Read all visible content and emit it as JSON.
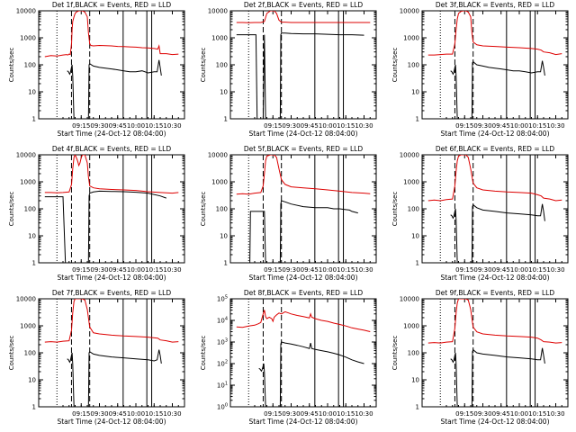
{
  "colors": {
    "events": "#000000",
    "lld": "#dd0000",
    "axes": "#000000",
    "background": "#ffffff"
  },
  "xlabel": "Start Time (24-Oct-12 08:04:00)",
  "ylabel": "Counts/sec",
  "x_ticks": [
    "09:15",
    "09:30",
    "09:45",
    "10:00",
    "10:15",
    "10:30"
  ],
  "y_ticks_decimal": [
    "1",
    "10",
    "100",
    "1000",
    "10000"
  ],
  "y_ticks_power": [
    "10^0",
    "10^1",
    "10^2",
    "10^3",
    "10^4",
    "10^5"
  ],
  "chart_data": [
    {
      "type": "line",
      "title": "Det 1f,BLACK = Events, RED = LLD",
      "ylim": [
        1,
        10000
      ],
      "yscale": "log",
      "x_unit": "minutes after 09:00",
      "series": [
        {
          "name": "Events",
          "x": [
            3.5,
            4.5,
            5.5,
            6,
            7.5,
            8,
            9,
            9.5,
            10,
            10.5,
            16,
            18,
            19,
            20,
            21,
            21.5,
            22,
            25,
            30,
            35,
            40,
            45,
            50,
            55,
            60,
            65,
            70,
            75,
            77.5,
            79,
            80,
            81
          ],
          "values": [
            60,
            55,
            45,
            50,
            100,
            40,
            1,
            1,
            1,
            1,
            1,
            1,
            1,
            1,
            1,
            100,
            110,
            90,
            80,
            75,
            70,
            65,
            60,
            55,
            55,
            60,
            50,
            55,
            55,
            150,
            80,
            40
          ]
        },
        {
          "name": "LLD",
          "x": [
            -15,
            -10,
            -5,
            0,
            3,
            4,
            5,
            6,
            7,
            7.5,
            8,
            9,
            10,
            11,
            12,
            13,
            14,
            15,
            16,
            18,
            20,
            21,
            22,
            23,
            25,
            30,
            35,
            40,
            45,
            50,
            55,
            60,
            65,
            70,
            75,
            78,
            79,
            80,
            85,
            90,
            95
          ],
          "values": [
            200,
            220,
            210,
            230,
            240,
            230,
            250,
            240,
            600,
            2000,
            4000,
            6000,
            8000,
            9000,
            9500,
            10000,
            10000,
            10000,
            10000,
            9000,
            6000,
            1500,
            600,
            520,
            500,
            520,
            510,
            500,
            480,
            470,
            460,
            450,
            430,
            420,
            400,
            380,
            500,
            260,
            260,
            240,
            250
          ]
        }
      ]
    },
    {
      "type": "line",
      "title": "Det 2f,BLACK = Events, RED = LLD",
      "ylim": [
        1,
        10000
      ],
      "yscale": "log",
      "x_unit": "minutes after 09:00",
      "series": [
        {
          "name": "Events",
          "x": [
            -15,
            -10,
            -5,
            0,
            1,
            2,
            7,
            8,
            9,
            15,
            20,
            21,
            21.5,
            22,
            25,
            30,
            40,
            50,
            60,
            70,
            80,
            90
          ],
          "values": [
            1300,
            1300,
            1300,
            1300,
            1300,
            1,
            1,
            1300,
            1,
            1,
            1,
            1,
            1300,
            1500,
            1500,
            1450,
            1400,
            1400,
            1350,
            1300,
            1300,
            1250
          ]
        },
        {
          "name": "LLD",
          "x": [
            -15,
            -10,
            -5,
            0,
            5,
            8,
            10,
            13,
            16,
            18,
            20,
            22,
            25,
            30,
            40,
            50,
            60,
            70,
            80,
            90,
            95
          ],
          "values": [
            3700,
            3700,
            3600,
            3700,
            3700,
            4000,
            8000,
            10000,
            10000,
            8000,
            4500,
            3800,
            3800,
            3700,
            3700,
            3700,
            3700,
            3700,
            3700,
            3700,
            3700
          ]
        }
      ]
    },
    {
      "type": "line",
      "title": "Det 3f,BLACK = Events, RED = LLD",
      "ylim": [
        1,
        10000
      ],
      "yscale": "log",
      "x_unit": "minutes after 09:00",
      "series": [
        {
          "name": "Events",
          "x": [
            3.5,
            4.5,
            5.5,
            6,
            7.5,
            8,
            9,
            20,
            21,
            21.5,
            22,
            25,
            30,
            35,
            40,
            45,
            50,
            55,
            60,
            65,
            70,
            75,
            77.5,
            79,
            80,
            81
          ],
          "values": [
            60,
            55,
            45,
            50,
            100,
            40,
            1,
            1,
            1,
            120,
            130,
            100,
            90,
            80,
            75,
            70,
            65,
            60,
            60,
            55,
            50,
            55,
            55,
            140,
            80,
            40
          ]
        },
        {
          "name": "LLD",
          "x": [
            -15,
            -10,
            -5,
            0,
            5,
            7,
            8,
            9,
            10,
            12,
            14,
            16,
            18,
            20,
            21,
            22,
            25,
            30,
            40,
            50,
            60,
            70,
            75,
            78,
            80,
            85,
            90,
            95
          ],
          "values": [
            230,
            230,
            240,
            250,
            250,
            600,
            2000,
            5000,
            8000,
            9500,
            10000,
            10000,
            9000,
            6000,
            1500,
            700,
            550,
            500,
            480,
            450,
            430,
            400,
            380,
            350,
            300,
            280,
            240,
            260
          ]
        }
      ]
    },
    {
      "type": "line",
      "title": "Det 4f,BLACK = Events, RED = LLD",
      "ylim": [
        1,
        10000
      ],
      "yscale": "log",
      "x_unit": "minutes after 09:00",
      "series": [
        {
          "name": "Events",
          "x": [
            -15,
            -5,
            0,
            2,
            7,
            8,
            9,
            20,
            21,
            21.5,
            22,
            25,
            30,
            40,
            50,
            60,
            70,
            80,
            85
          ],
          "values": [
            280,
            280,
            280,
            1,
            1,
            1,
            1,
            1,
            1,
            300,
            380,
            420,
            450,
            440,
            430,
            410,
            380,
            300,
            250
          ]
        },
        {
          "name": "LLD",
          "x": [
            -15,
            -10,
            -5,
            0,
            5,
            7,
            8,
            9,
            10,
            12,
            13,
            14,
            15,
            16,
            18,
            20,
            21,
            22,
            25,
            30,
            40,
            50,
            60,
            70,
            80,
            90,
            95
          ],
          "values": [
            400,
            400,
            390,
            400,
            420,
            800,
            3000,
            8000,
            10000,
            6000,
            4000,
            5000,
            8000,
            10000,
            10000,
            5000,
            1500,
            700,
            600,
            550,
            520,
            500,
            480,
            430,
            400,
            380,
            400
          ]
        }
      ]
    },
    {
      "type": "line",
      "title": "Det 5f,BLACK = Events, RED = LLD",
      "ylim": [
        1,
        10000
      ],
      "yscale": "log",
      "x_unit": "minutes after 09:00",
      "series": [
        {
          "name": "Events",
          "x": [
            -4,
            -3.5,
            7,
            8,
            9,
            20,
            21,
            21.5,
            22,
            25,
            30,
            40,
            50,
            60,
            65,
            70,
            78,
            80,
            85
          ],
          "values": [
            1,
            80,
            80,
            80,
            1,
            1,
            1,
            150,
            200,
            180,
            150,
            120,
            110,
            110,
            100,
            100,
            90,
            80,
            70
          ]
        },
        {
          "name": "LLD",
          "x": [
            -15,
            -10,
            -5,
            0,
            5,
            7,
            8,
            9,
            10,
            13,
            16,
            18,
            20,
            22,
            25,
            30,
            40,
            50,
            60,
            70,
            80,
            90,
            95
          ],
          "values": [
            350,
            360,
            350,
            380,
            400,
            700,
            2000,
            6000,
            9000,
            10000,
            10000,
            8000,
            3000,
            1200,
            800,
            650,
            600,
            550,
            500,
            450,
            400,
            380,
            360
          ]
        }
      ]
    },
    {
      "type": "line",
      "title": "Det 6f,BLACK = Events, RED = LLD",
      "ylim": [
        1,
        10000
      ],
      "yscale": "log",
      "x_unit": "minutes after 09:00",
      "series": [
        {
          "name": "Events",
          "x": [
            3.5,
            4.5,
            5.5,
            6,
            7.5,
            8,
            9,
            20,
            21,
            21.5,
            22,
            25,
            30,
            40,
            50,
            60,
            70,
            75,
            77.5,
            79,
            80,
            81
          ],
          "values": [
            60,
            55,
            45,
            50,
            100,
            40,
            1,
            1,
            1,
            120,
            140,
            110,
            90,
            80,
            70,
            65,
            60,
            55,
            55,
            150,
            80,
            35
          ]
        },
        {
          "name": "LLD",
          "x": [
            -15,
            -10,
            -5,
            0,
            5,
            7,
            8,
            9,
            10,
            12,
            14,
            16,
            18,
            20,
            22,
            25,
            30,
            40,
            50,
            60,
            70,
            75,
            78,
            80,
            85,
            90,
            95
          ],
          "values": [
            200,
            210,
            200,
            220,
            230,
            700,
            2500,
            6000,
            9000,
            10000,
            10000,
            10000,
            8000,
            3000,
            900,
            600,
            500,
            450,
            420,
            400,
            380,
            330,
            300,
            250,
            230,
            200,
            210
          ]
        }
      ]
    },
    {
      "type": "line",
      "title": "Det 7f,BLACK = Events, RED = LLD",
      "ylim": [
        1,
        10000
      ],
      "yscale": "log",
      "x_unit": "minutes after 09:00",
      "series": [
        {
          "name": "Events",
          "x": [
            3.5,
            4.5,
            5.5,
            6,
            7.5,
            8,
            9,
            20,
            21,
            21.5,
            22,
            25,
            30,
            40,
            50,
            60,
            70,
            75,
            77.5,
            79,
            80,
            81
          ],
          "values": [
            60,
            55,
            45,
            50,
            100,
            40,
            1,
            1,
            1,
            100,
            110,
            90,
            80,
            70,
            65,
            60,
            55,
            50,
            55,
            130,
            80,
            40
          ]
        },
        {
          "name": "LLD",
          "x": [
            -15,
            -10,
            -5,
            0,
            5,
            7,
            8,
            9,
            10,
            12,
            14,
            16,
            18,
            20,
            22,
            25,
            30,
            40,
            50,
            60,
            70,
            78,
            80,
            85,
            90,
            95
          ],
          "values": [
            250,
            260,
            250,
            270,
            280,
            700,
            3000,
            8000,
            10000,
            10000,
            10000,
            10000,
            9000,
            4000,
            900,
            550,
            500,
            450,
            420,
            400,
            380,
            350,
            300,
            280,
            250,
            260
          ]
        }
      ]
    },
    {
      "type": "line",
      "title": "Det 8f,BLACK = Events, RED = LLD",
      "ylim": [
        1,
        100000
      ],
      "yscale": "log",
      "x_unit": "minutes after 09:00",
      "series": [
        {
          "name": "Events",
          "x": [
            3.5,
            4.5,
            5.5,
            6,
            7.5,
            8,
            9,
            20,
            21,
            21.5,
            22,
            25,
            30,
            35,
            40,
            45,
            46,
            47,
            50,
            55,
            60,
            65,
            70,
            75,
            80,
            85,
            90
          ],
          "values": [
            60,
            55,
            45,
            50,
            100,
            40,
            1,
            1,
            1,
            800,
            1000,
            900,
            800,
            700,
            600,
            500,
            900,
            500,
            450,
            400,
            350,
            300,
            250,
            200,
            150,
            120,
            100
          ]
        },
        {
          "name": "LLD",
          "x": [
            -15,
            -10,
            -5,
            0,
            3,
            5,
            7,
            8,
            9,
            10,
            12,
            14,
            15,
            16,
            18,
            20,
            22,
            25,
            28,
            30,
            35,
            40,
            45,
            46,
            47,
            50,
            55,
            60,
            65,
            70,
            75,
            80,
            85,
            90,
            95
          ],
          "values": [
            5000,
            4800,
            5500,
            6000,
            7000,
            8000,
            20000,
            30000,
            15000,
            12000,
            14000,
            12000,
            9000,
            14000,
            18000,
            22000,
            20000,
            25000,
            22000,
            20000,
            17000,
            15000,
            13000,
            20000,
            14000,
            12000,
            10000,
            9000,
            7500,
            6500,
            5500,
            4500,
            4000,
            3500,
            3000
          ]
        }
      ]
    },
    {
      "type": "line",
      "title": "Det 9f,BLACK = Events, RED = LLD",
      "ylim": [
        1,
        10000
      ],
      "yscale": "log",
      "x_unit": "minutes after 09:00",
      "series": [
        {
          "name": "Events",
          "x": [
            3.5,
            4.5,
            5.5,
            6,
            7.5,
            8,
            9,
            20,
            21,
            21.5,
            22,
            25,
            30,
            40,
            50,
            60,
            70,
            75,
            77.5,
            79,
            80,
            81
          ],
          "values": [
            60,
            55,
            45,
            50,
            100,
            40,
            1,
            1,
            1,
            110,
            130,
            100,
            90,
            80,
            70,
            65,
            60,
            55,
            55,
            150,
            80,
            40
          ]
        },
        {
          "name": "LLD",
          "x": [
            -15,
            -10,
            -5,
            0,
            5,
            7,
            8,
            9,
            10,
            12,
            14,
            16,
            18,
            20,
            22,
            25,
            30,
            40,
            50,
            60,
            70,
            75,
            78,
            80,
            85,
            90,
            95
          ],
          "values": [
            230,
            240,
            230,
            250,
            260,
            800,
            3000,
            7000,
            10000,
            10000,
            10000,
            10000,
            9000,
            4000,
            900,
            600,
            500,
            450,
            420,
            400,
            380,
            350,
            300,
            260,
            250,
            230,
            240
          ]
        }
      ]
    }
  ]
}
